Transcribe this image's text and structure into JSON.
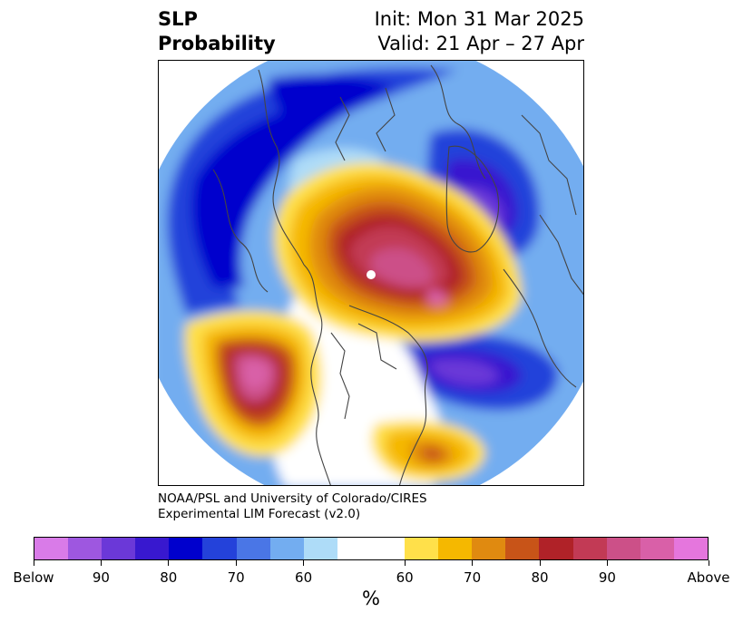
{
  "title": {
    "left_line1": "SLP",
    "left_line2": "Probability",
    "right_line1": "Init: Mon 31 Mar 2025",
    "right_line2": "Valid: 21 Apr – 27 Apr"
  },
  "credit": {
    "line1": "NOAA/PSL and University of Colorado/CIRES",
    "line2": "Experimental LIM Forecast (v2.0)"
  },
  "colorbar": {
    "colors": [
      "#d97be8",
      "#9e57e0",
      "#6b38d8",
      "#3818cf",
      "#0000cd",
      "#2442da",
      "#4a76e6",
      "#73adf0",
      "#aedcf8",
      "#ffffff",
      "#ffe04a",
      "#f5b800",
      "#e08a10",
      "#c85418",
      "#b02228",
      "#c23a55",
      "#cc5088",
      "#d960a8",
      "#e576dd"
    ],
    "labels": [
      "Below",
      "90",
      "80",
      "70",
      "60",
      "60",
      "70",
      "80",
      "90",
      "Above"
    ],
    "unit": "%"
  },
  "map": {
    "region": "Northern Hemisphere polar stereographic",
    "features": [
      "North America",
      "Europe",
      "Asia",
      "Arctic Ocean",
      "Greenland"
    ]
  }
}
